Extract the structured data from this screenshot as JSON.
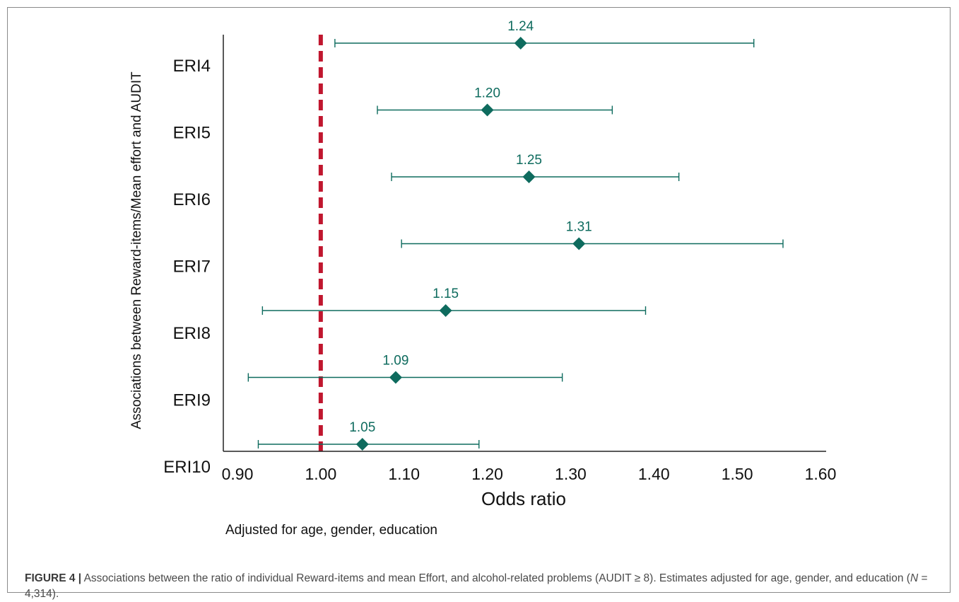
{
  "chart_data": {
    "type": "forest",
    "ylabel": "Associations between Reward-items/Mean effort and AUDIT",
    "xlabel": "Odds ratio",
    "note": "Adjusted for age, gender, education",
    "xlim": [
      0.9,
      1.6
    ],
    "xticks": [
      0.9,
      1.0,
      1.1,
      1.2,
      1.3,
      1.4,
      1.5,
      1.6
    ],
    "xtick_labels": [
      "0.90",
      "1.00",
      "1.10",
      "1.20",
      "1.30",
      "1.40",
      "1.50",
      "1.60"
    ],
    "reference_line": 1.0,
    "rows": [
      {
        "label": "ERI4",
        "or": 1.24,
        "or_label": "1.24",
        "ci_low": 1.017,
        "ci_high": 1.52
      },
      {
        "label": "ERI5",
        "or": 1.2,
        "or_label": "1.20",
        "ci_low": 1.068,
        "ci_high": 1.35
      },
      {
        "label": "ERI6",
        "or": 1.25,
        "or_label": "1.25",
        "ci_low": 1.085,
        "ci_high": 1.43
      },
      {
        "label": "ERI7",
        "or": 1.31,
        "or_label": "1.31",
        "ci_low": 1.097,
        "ci_high": 1.555
      },
      {
        "label": "ERI8",
        "or": 1.15,
        "or_label": "1.15",
        "ci_low": 0.93,
        "ci_high": 1.39
      },
      {
        "label": "ERI9",
        "or": 1.09,
        "or_label": "1.09",
        "ci_low": 0.913,
        "ci_high": 1.29
      },
      {
        "label": "ERI10",
        "or": 1.05,
        "or_label": "1.05",
        "ci_low": 0.925,
        "ci_high": 1.19
      }
    ],
    "colors": {
      "marker": "#0e6b5e",
      "reference": "#c0162e",
      "axis": "#222222"
    }
  },
  "caption": {
    "label": "FIGURE 4 |",
    "text_part1": "Associations between the ratio of individual Reward-items and mean Effort, and alcohol-related problems (AUDIT ≥ 8). Estimates adjusted for age, gender, and education (",
    "n_symbol": "N",
    "text_part2": " = 4,314)."
  }
}
